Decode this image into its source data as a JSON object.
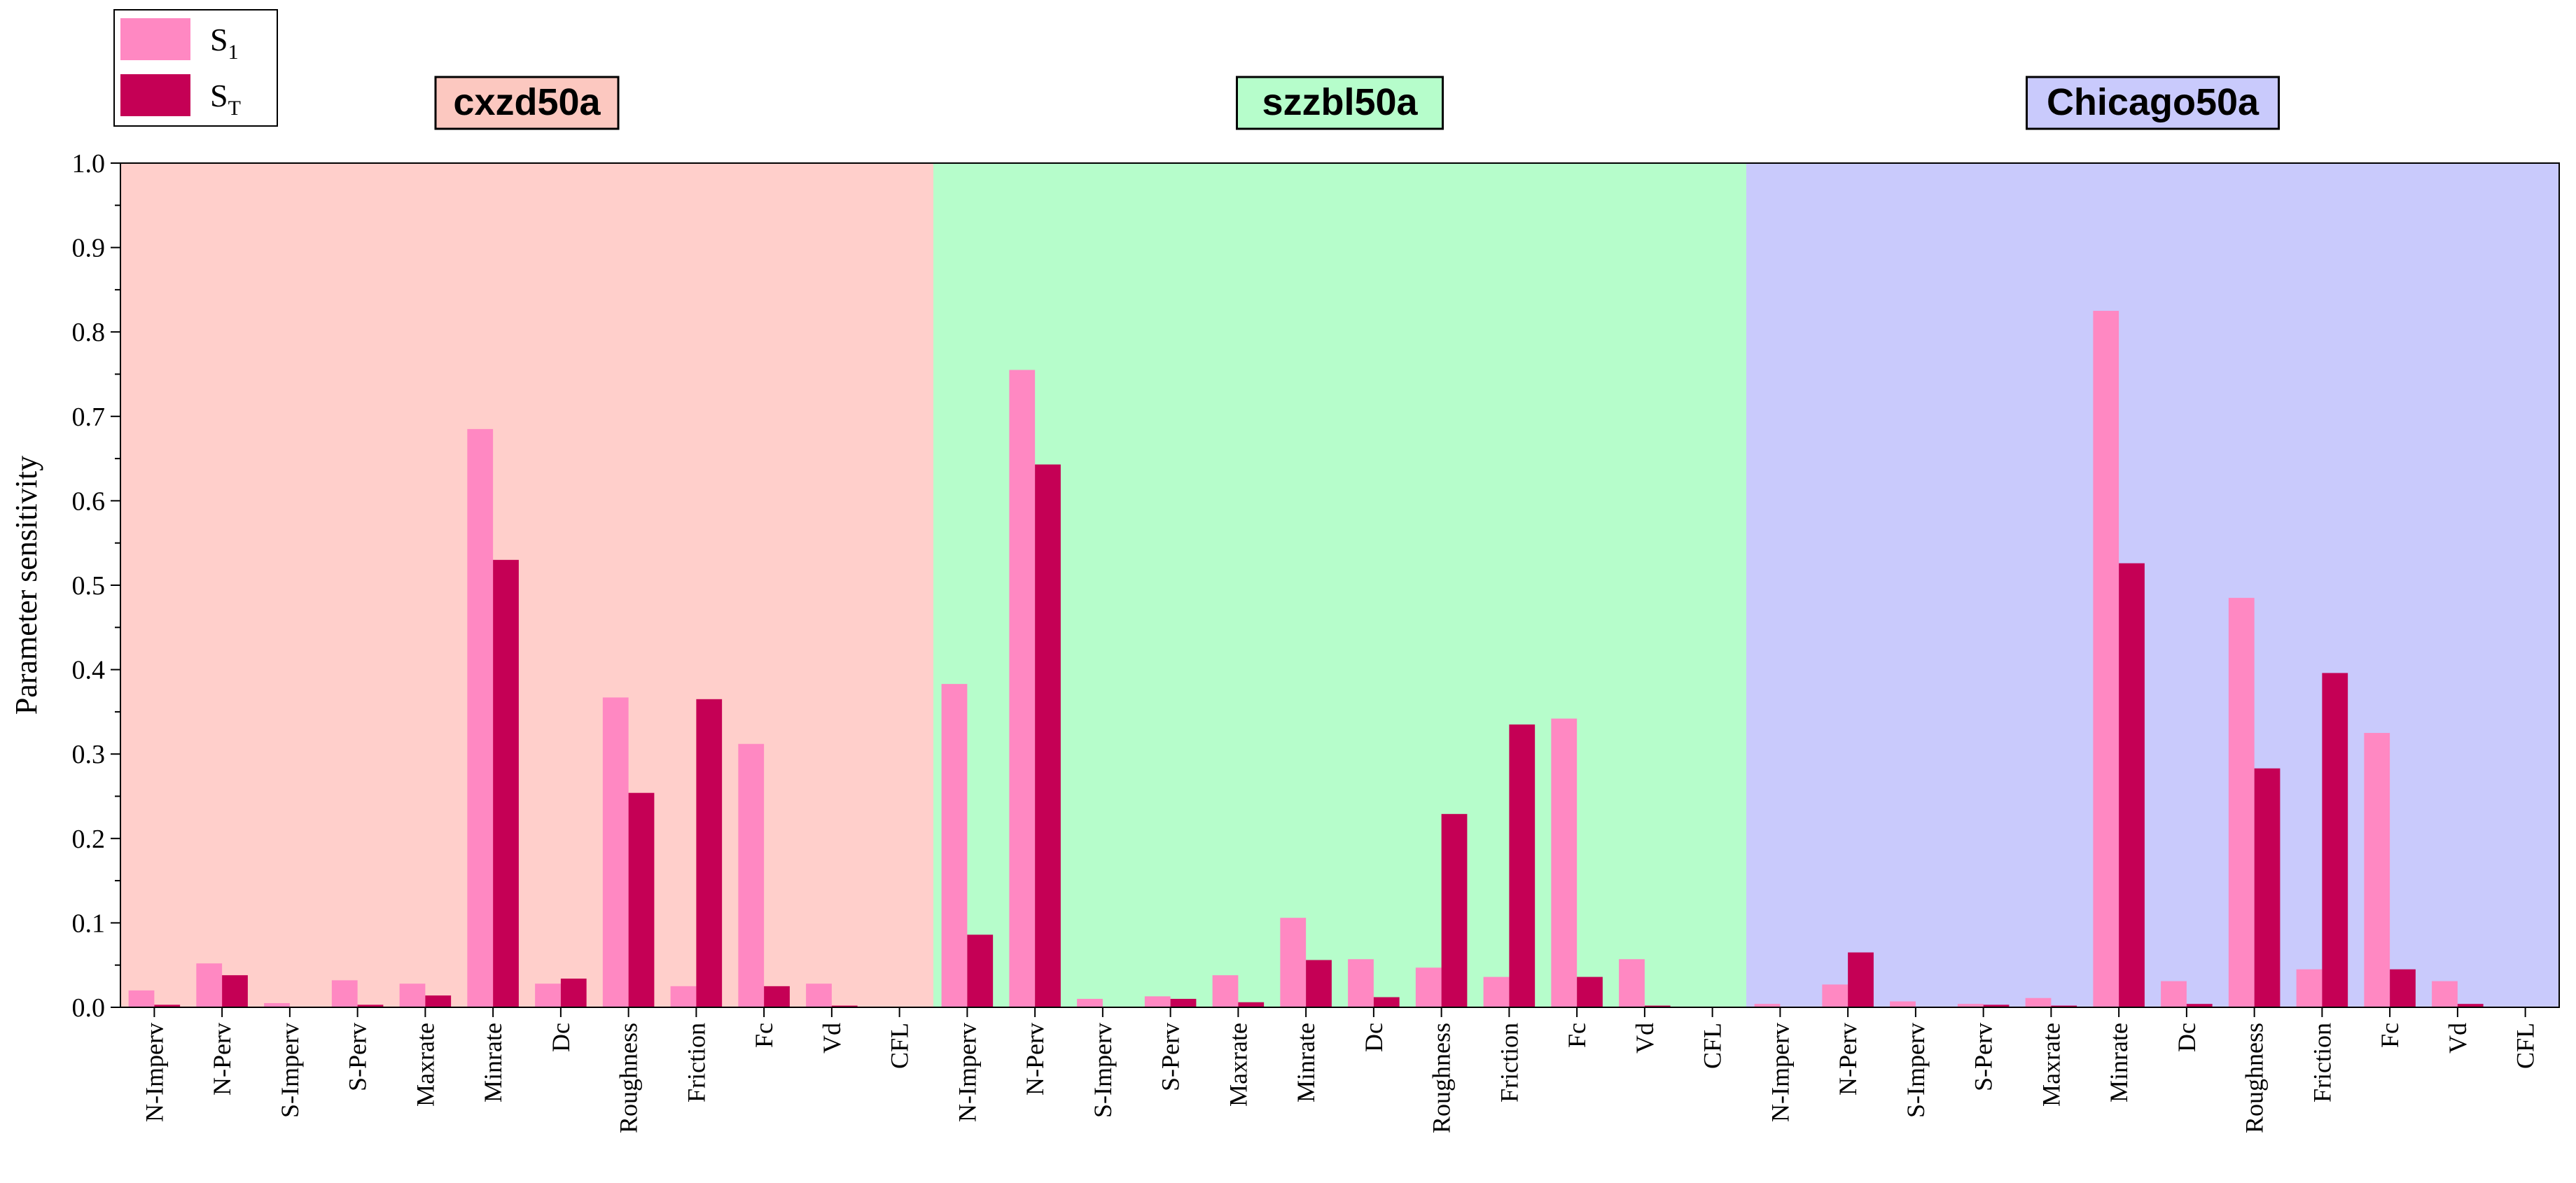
{
  "chart_data": {
    "type": "bar",
    "ylabel": "Parameter sensitivity",
    "ylim": [
      0,
      1.0
    ],
    "yticks": [
      "0.0",
      "0.1",
      "0.2",
      "0.3",
      "0.4",
      "0.5",
      "0.6",
      "0.7",
      "0.8",
      "0.9",
      "1.0"
    ],
    "legend": {
      "placement": "top-left",
      "entries": [
        {
          "base": "S",
          "sub": "1",
          "color": "#ff88c2"
        },
        {
          "base": "S",
          "sub": "T",
          "color": "#c50055"
        }
      ]
    },
    "categories": [
      "N-Imperv",
      "N-Perv",
      "S-Imperv",
      "S-Perv",
      "Maxrate",
      "Minrate",
      "Dc",
      "Roughness",
      "Friction",
      "Fc",
      "Vd",
      "CFL"
    ],
    "groups": [
      {
        "name": "cxzd50a",
        "background": "#ffcfcb",
        "label_bg": "#fcc8c0",
        "S1": [
          0.02,
          0.052,
          0.005,
          0.032,
          0.028,
          0.685,
          0.028,
          0.367,
          0.025,
          0.312,
          0.028,
          0.0
        ],
        "ST": [
          0.003,
          0.038,
          0.0,
          0.003,
          0.014,
          0.53,
          0.034,
          0.254,
          0.365,
          0.025,
          0.002,
          0.0
        ]
      },
      {
        "name": "szzbl50a",
        "background": "#b6fdcb",
        "label_bg": "#b6fdcb",
        "S1": [
          0.383,
          0.755,
          0.01,
          0.013,
          0.038,
          0.106,
          0.057,
          0.047,
          0.036,
          0.342,
          0.057,
          0.0
        ],
        "ST": [
          0.086,
          0.643,
          0.0,
          0.01,
          0.006,
          0.056,
          0.012,
          0.229,
          0.335,
          0.036,
          0.002,
          0.0
        ]
      },
      {
        "name": "Chicago50a",
        "background": "#c9cafc",
        "label_bg": "#c9cafc",
        "S1": [
          0.004,
          0.027,
          0.007,
          0.004,
          0.011,
          0.825,
          0.031,
          0.485,
          0.045,
          0.325,
          0.031,
          0.0
        ],
        "ST": [
          0.0,
          0.065,
          0.0,
          0.003,
          0.002,
          0.526,
          0.004,
          0.283,
          0.396,
          0.045,
          0.004,
          0.0
        ]
      }
    ]
  }
}
